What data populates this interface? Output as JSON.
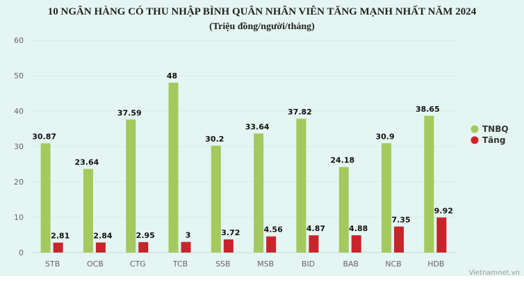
{
  "chart_data": {
    "type": "bar",
    "title": "10 NGÂN HÀNG CÓ THU NHẬP BÌNH QUÂN NHÂN VIÊN TĂNG MẠNH NHẤT NĂM 2024",
    "subtitle": "(Triệu đồng/người/tháng)",
    "categories": [
      "STB",
      "OCB",
      "CTG",
      "TCB",
      "SSB",
      "MSB",
      "BID",
      "BAB",
      "NCB",
      "HDB"
    ],
    "series": [
      {
        "name": "TNBQ",
        "color": "#a3c95f",
        "values": [
          30.87,
          23.64,
          37.59,
          48,
          30.2,
          33.64,
          37.82,
          24.18,
          30.9,
          38.65
        ]
      },
      {
        "name": "Tăng",
        "color": "#c8252a",
        "values": [
          2.81,
          2.84,
          2.95,
          3,
          3.72,
          4.56,
          4.87,
          4.88,
          7.35,
          9.92
        ]
      }
    ],
    "ylim": [
      0,
      60
    ],
    "yticks": [
      0,
      10,
      20,
      30,
      40,
      50,
      60
    ],
    "xlabel": "",
    "ylabel": "",
    "grid": true,
    "legend": "right",
    "source": "Vietnamnet.vn"
  }
}
